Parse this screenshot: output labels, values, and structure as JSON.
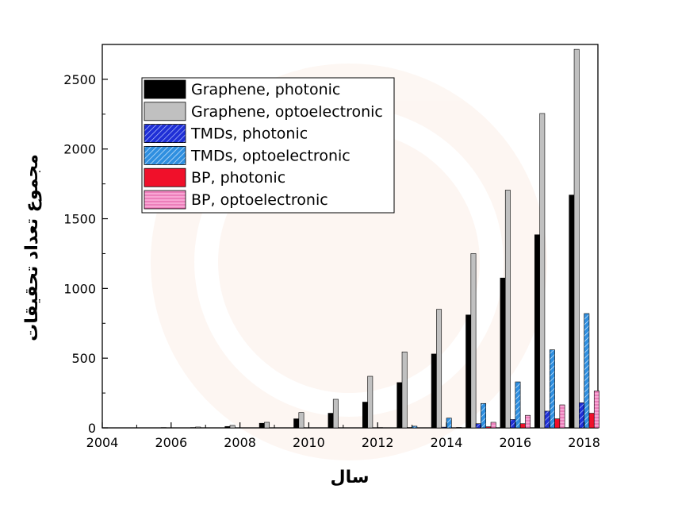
{
  "chart_data": {
    "type": "bar",
    "xlabel": "سال",
    "ylabel": "مجموع تعداد تحقیقات",
    "xlim": [
      2004,
      2018.4
    ],
    "ylim": [
      0,
      2750
    ],
    "xticks": [
      2004,
      2006,
      2008,
      2010,
      2012,
      2014,
      2016,
      2018
    ],
    "yticks": [
      0,
      500,
      1000,
      1500,
      2000,
      2500
    ],
    "grid": false,
    "legend_position": "top-left",
    "x": [
      2005,
      2006,
      2007,
      2008,
      2009,
      2010,
      2011,
      2012,
      2013,
      2014,
      2015,
      2016,
      2017,
      2018
    ],
    "series": [
      {
        "name": "Graphene, photonic",
        "color": "#000000",
        "pattern": "solid",
        "values": [
          0,
          1,
          2,
          10,
          33,
          65,
          105,
          185,
          325,
          530,
          810,
          1075,
          1385,
          1670
        ]
      },
      {
        "name": "Graphene, optoelectronic",
        "color": "#c0c0c0",
        "pattern": "solid",
        "values": [
          1,
          2,
          6,
          18,
          40,
          110,
          205,
          370,
          545,
          850,
          1250,
          1705,
          2255,
          2715
        ]
      },
      {
        "name": "TMDs, photonic",
        "color": "#1f2fd6",
        "pattern": "hatch",
        "values": [
          0,
          0,
          0,
          0,
          0,
          0,
          0,
          1,
          2,
          5,
          30,
          60,
          120,
          180
        ]
      },
      {
        "name": "TMDs, optoelectronic",
        "color": "#2f8fe0",
        "pattern": "hatch",
        "values": [
          0,
          0,
          0,
          0,
          0,
          0,
          0,
          2,
          12,
          70,
          175,
          330,
          560,
          820
        ]
      },
      {
        "name": "BP, photonic",
        "color": "#f0102a",
        "pattern": "solid",
        "values": [
          0,
          0,
          0,
          0,
          0,
          0,
          0,
          0,
          0,
          1,
          8,
          30,
          65,
          105
        ]
      },
      {
        "name": "BP, optoelectronic",
        "color": "#f580c0",
        "pattern": "hlines",
        "values": [
          0,
          0,
          0,
          0,
          0,
          0,
          0,
          0,
          0,
          3,
          40,
          90,
          165,
          265
        ]
      }
    ]
  }
}
